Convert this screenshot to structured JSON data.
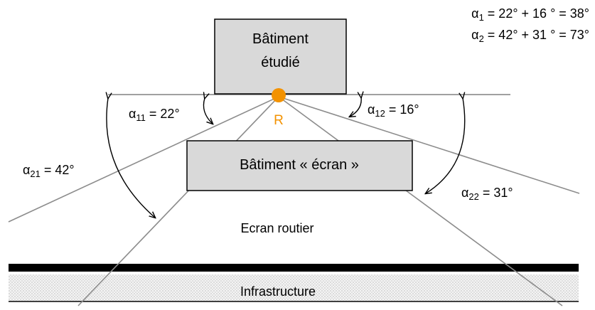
{
  "buildings": {
    "studied": {
      "line1": "Bâtiment",
      "line2": "étudié"
    },
    "screen": {
      "label": "Bâtiment « écran »"
    }
  },
  "receiver": {
    "label": "R",
    "color": "#f39200"
  },
  "angles": {
    "a11": {
      "sym": "α",
      "sub": "11",
      "val": " = 22°"
    },
    "a12": {
      "sym": "α",
      "sub": "12",
      "val": " = 16°"
    },
    "a21": {
      "sym": "α",
      "sub": "21",
      "val": " = 42°"
    },
    "a22": {
      "sym": "α",
      "sub": "22",
      "val": " = 31°"
    }
  },
  "sums": {
    "a1": {
      "sym": "α",
      "sub": "1",
      "val": " = 22° + 16 ° = 38°"
    },
    "a2": {
      "sym": "α",
      "sub": "2",
      "val": " = 42° + 31 ° = 73°"
    }
  },
  "zones": {
    "road_screen": "Ecran routier",
    "infrastructure": "Infrastructure"
  }
}
